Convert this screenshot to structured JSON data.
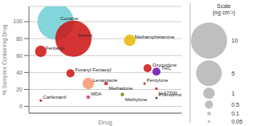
{
  "chart_data": {
    "type": "scatter",
    "xlabel": "Drug",
    "ylabel": "% Samples Containing Drug",
    "xlim": [
      0.2,
      10.5
    ],
    "ylim": [
      -8,
      118
    ],
    "yticks": [
      0,
      20,
      40,
      60,
      80,
      100
    ],
    "grid": true,
    "tick_labels": "y",
    "labels": [
      "Cocaine",
      "Heroin",
      "Fentanyl",
      "Furanyl Fentanyl",
      "Levamisole",
      "MDA",
      "Methadone",
      "Methamphetamine",
      "Methylone",
      "Oxycodone",
      "Pentylone",
      "THC",
      "U-47700",
      "Carfentanil",
      "Phentormine"
    ],
    "x": [
      2,
      3.2,
      1.0,
      3.0,
      4.2,
      4.2,
      5.4,
      7.0,
      6.5,
      8.2,
      8.0,
      8.8,
      8.8,
      1.0,
      8.8
    ],
    "values": [
      100,
      80,
      65,
      39,
      27,
      11,
      27,
      78,
      14,
      45,
      27,
      41,
      21,
      7,
      10
    ],
    "sizes": [
      10,
      10,
      1.0,
      0.5,
      1.0,
      0.1,
      0.1,
      1.0,
      0.1,
      0.5,
      0.05,
      0.5,
      0.05,
      0.05,
      0.05
    ],
    "colors": [
      "#6ECFD6",
      "#CC1111",
      "#CC1111",
      "#CC1111",
      "#F4956A",
      "#CC3377",
      "#CC1111",
      "#E8B800",
      "#6A8A00",
      "#CC1111",
      "#CC1111",
      "#6A0DAD",
      "#CC1111",
      "#CC1111",
      "#444444"
    ],
    "size_legend_title": "Scale\n(ng cm⁻²)",
    "size_legend": [
      10,
      5,
      1,
      0.5,
      0.1,
      0.05
    ]
  }
}
